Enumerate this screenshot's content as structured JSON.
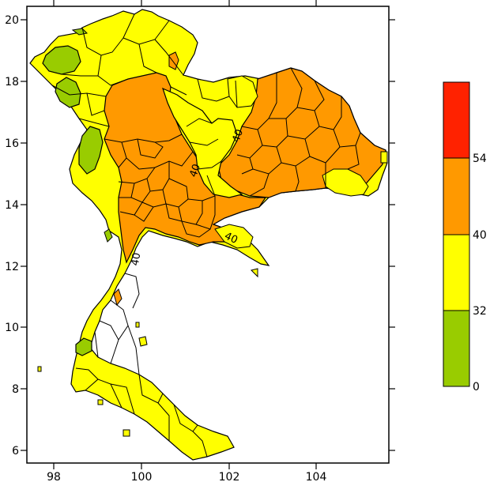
{
  "map": {
    "x_ticks": [
      "98",
      "100",
      "102",
      "104"
    ],
    "y_ticks": [
      "20",
      "18",
      "16",
      "14",
      "12",
      "10",
      "8",
      "6"
    ],
    "contour_labels": [
      "40",
      "40",
      "40",
      "40"
    ]
  },
  "legend": {
    "bins": [
      {
        "color": "#ff2200",
        "range": "above 54"
      },
      {
        "color": "#ff9900",
        "range": "40-54"
      },
      {
        "color": "#ffff00",
        "range": "32-40"
      },
      {
        "color": "#99cc00",
        "range": "0-32"
      }
    ],
    "tick_labels": [
      "54",
      "40",
      "32",
      "0"
    ]
  },
  "colors": {
    "green": "#99cc00",
    "yellow": "#ffff00",
    "orange": "#ff9900",
    "red": "#ff2200"
  }
}
